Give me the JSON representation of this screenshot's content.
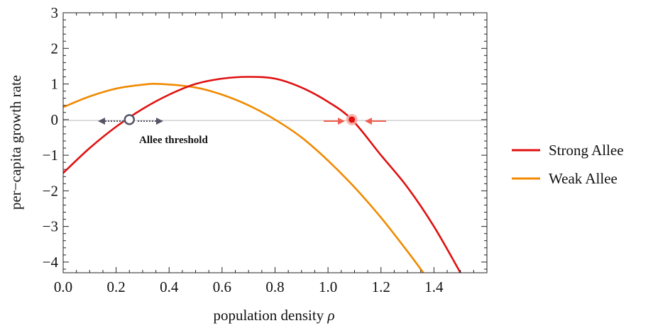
{
  "chart_data": {
    "type": "line",
    "title": "",
    "xlabel": "population density",
    "xlabel_symbol": "ρ",
    "ylabel": "per−capita growth rate",
    "xlim": [
      0,
      1.6
    ],
    "ylim": [
      -4.3,
      3
    ],
    "xticks": [
      0.0,
      0.2,
      0.4,
      0.6,
      0.8,
      1.0,
      1.2,
      1.4
    ],
    "xtick_labels": [
      "0.0",
      "0.2",
      "0.4",
      "0.6",
      "0.8",
      "1.0",
      "1.2",
      "1.4"
    ],
    "yticks": [
      3,
      2,
      1,
      0,
      -1,
      -2,
      -3,
      -4
    ],
    "ytick_labels": [
      "3",
      "2",
      "1",
      "0",
      "−1",
      "−2",
      "−3",
      "−4"
    ],
    "grid": false,
    "zero_line": true,
    "legend_position": "right",
    "series": [
      {
        "name": "Strong Allee",
        "color": "#e01010",
        "x": [
          0.0,
          0.1,
          0.2,
          0.3,
          0.4,
          0.5,
          0.6,
          0.7,
          0.8,
          0.9,
          1.0,
          1.09,
          1.2,
          1.3,
          1.4,
          1.5
        ],
        "y": [
          -1.5,
          -0.8,
          -0.2,
          0.3,
          0.7,
          1.0,
          1.15,
          1.2,
          1.15,
          0.9,
          0.5,
          0.0,
          -1.0,
          -1.9,
          -3.0,
          -4.3
        ]
      },
      {
        "name": "Weak Allee",
        "color": "#f08a00",
        "x": [
          0.0,
          0.1,
          0.2,
          0.3,
          0.37,
          0.5,
          0.6,
          0.7,
          0.8,
          0.9,
          1.0,
          1.1,
          1.2,
          1.3,
          1.36
        ],
        "y": [
          0.35,
          0.65,
          0.87,
          0.98,
          1.0,
          0.9,
          0.7,
          0.4,
          0.0,
          -0.5,
          -1.15,
          -1.9,
          -2.75,
          -3.7,
          -4.3
        ]
      }
    ],
    "annotations": {
      "threshold_label": "Allee threshold",
      "unstable_point": {
        "x": 0.25,
        "y": 0,
        "color": "#555566"
      },
      "stable_point": {
        "x": 1.09,
        "y": 0,
        "color": "#e01010"
      }
    }
  }
}
